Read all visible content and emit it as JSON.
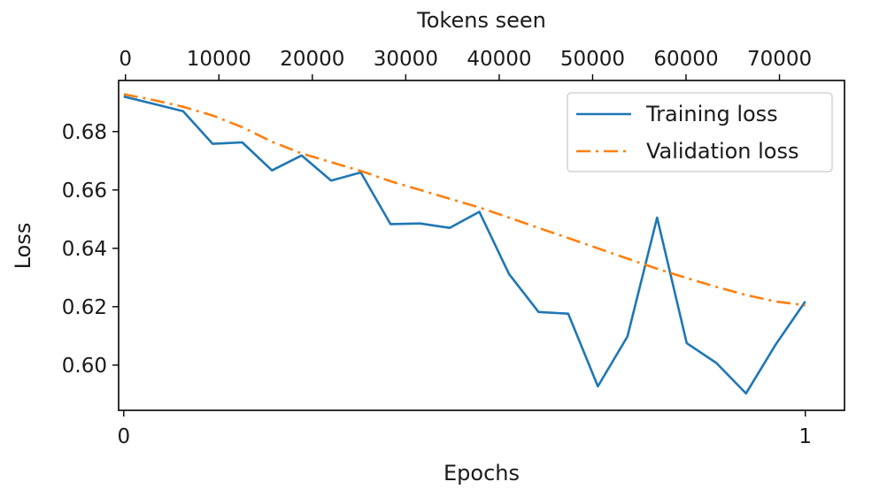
{
  "chart_data": {
    "type": "line",
    "xlabel": "Epochs",
    "ylabel": "Loss",
    "x2label": "Tokens seen",
    "xlim": [
      -0.0075,
      1.0575
    ],
    "ylim": [
      0.5845,
      0.6975
    ],
    "x2lim": [
      -733,
      76960
    ],
    "x_ticks": [
      0,
      1
    ],
    "x_tick_labels": [
      "0",
      "1"
    ],
    "y_ticks": [
      0.6,
      0.62,
      0.64,
      0.66,
      0.68
    ],
    "y_tick_labels": [
      "0.60",
      "0.62",
      "0.64",
      "0.66",
      "0.68"
    ],
    "x2_ticks": [
      0,
      10000,
      20000,
      30000,
      40000,
      50000,
      60000,
      70000
    ],
    "x2_tick_labels": [
      "0",
      "10000",
      "20000",
      "30000",
      "40000",
      "50000",
      "60000",
      "70000"
    ],
    "legend_position": "upper-right",
    "grid": false,
    "series": [
      {
        "name": "Training loss",
        "color": "#1f77b4",
        "linestyle": "solid",
        "x": [
          0,
          0.0435,
          0.087,
          0.1304,
          0.1739,
          0.2174,
          0.2609,
          0.3043,
          0.3478,
          0.3913,
          0.4348,
          0.4783,
          0.5217,
          0.5652,
          0.6087,
          0.6522,
          0.6957,
          0.7391,
          0.7826,
          0.8261,
          0.8696,
          0.913,
          0.9565,
          1.0
        ],
        "y": [
          0.692,
          0.6895,
          0.687,
          0.6758,
          0.6763,
          0.6667,
          0.6718,
          0.6632,
          0.666,
          0.6483,
          0.6485,
          0.647,
          0.6525,
          0.6312,
          0.6182,
          0.6176,
          0.5927,
          0.6098,
          0.6505,
          0.6075,
          0.6007,
          0.5903,
          0.607,
          0.6218
        ]
      },
      {
        "name": "Validation loss",
        "color": "#ff7f0e",
        "linestyle": "dashdot",
        "x": [
          0,
          0.0435,
          0.087,
          0.1304,
          0.1739,
          0.2174,
          0.2609,
          0.3043,
          0.3478,
          0.3913,
          0.4348,
          0.4783,
          0.5217,
          0.5652,
          0.6087,
          0.6522,
          0.6957,
          0.7391,
          0.7826,
          0.8261,
          0.8696,
          0.913,
          0.9565,
          1.0
        ],
        "y": [
          0.6928,
          0.6908,
          0.6885,
          0.6855,
          0.6815,
          0.6765,
          0.6725,
          0.6695,
          0.6665,
          0.663,
          0.66,
          0.657,
          0.654,
          0.6505,
          0.647,
          0.6435,
          0.64,
          0.6365,
          0.633,
          0.6298,
          0.6268,
          0.624,
          0.6218,
          0.6205
        ]
      }
    ]
  }
}
